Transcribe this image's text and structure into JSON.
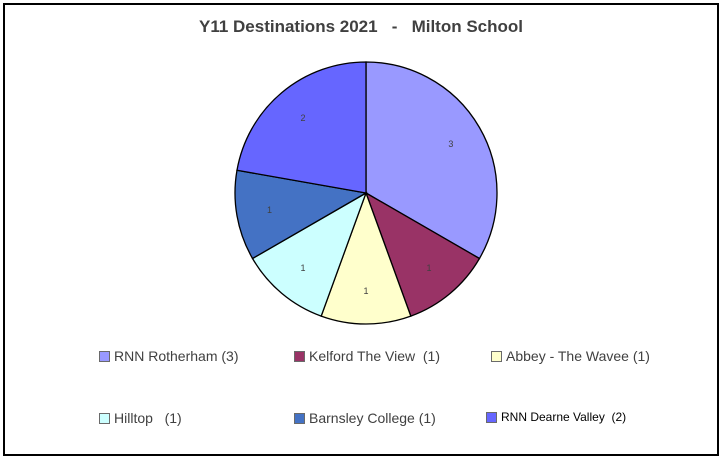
{
  "chart_data": {
    "type": "pie",
    "title": "Y11 Destinations 2021   -   Milton School",
    "start_angle_deg": 0,
    "direction": "clockwise",
    "legend_position": "bottom",
    "slices": [
      {
        "label": "RNN Rotherham (3)",
        "value": 3,
        "data_label": "3",
        "color": "#9999ff"
      },
      {
        "label": "Kelford The View  (1)",
        "value": 1,
        "data_label": "1",
        "color": "#993366"
      },
      {
        "label": "Abbey - The Wavee (1)",
        "value": 1,
        "data_label": "1",
        "color": "#ffffcc"
      },
      {
        "label": "Hilltop   (1)",
        "value": 1,
        "data_label": "1",
        "color": "#ccffff"
      },
      {
        "label": "Barnsley College (1)",
        "value": 1,
        "data_label": "1",
        "color": "#4472c4"
      },
      {
        "label": "RNN Dearne Valley  (2)",
        "value": 2,
        "data_label": "2",
        "color": "#6666ff"
      }
    ]
  }
}
